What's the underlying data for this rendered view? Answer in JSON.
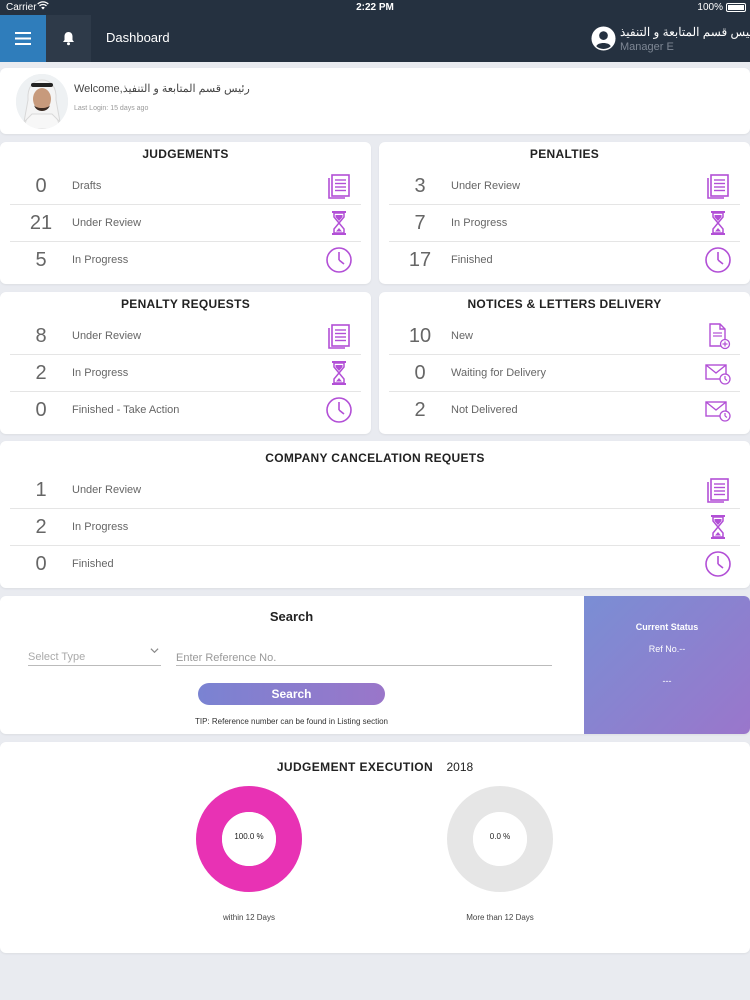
{
  "status_bar": {
    "carrier": "Carrier",
    "time": "2:22 PM",
    "battery": "100%"
  },
  "nav": {
    "title": "Dashboard",
    "user_name": "رئيس قسم المتابعة و التنفيذ",
    "user_role": "Manager E"
  },
  "welcome": {
    "greeting": "Welcome,رئيس قسم المتابعة و التنفيذ",
    "last_login": "Last Login: 15 days ago"
  },
  "judgements": {
    "title": "JUDGEMENTS",
    "rows": [
      {
        "count": "0",
        "label": "Drafts",
        "icon": "document-icon"
      },
      {
        "count": "21",
        "label": "Under Review",
        "icon": "hourglass-icon"
      },
      {
        "count": "5",
        "label": "In Progress",
        "icon": "clock-icon"
      }
    ]
  },
  "penalties": {
    "title": "PENALTIES",
    "rows": [
      {
        "count": "3",
        "label": "Under Review",
        "icon": "document-icon"
      },
      {
        "count": "7",
        "label": "In Progress",
        "icon": "hourglass-icon"
      },
      {
        "count": "17",
        "label": "Finished",
        "icon": "clock-icon"
      }
    ]
  },
  "penalty_requests": {
    "title": "PENALTY REQUESTS",
    "rows": [
      {
        "count": "8",
        "label": "Under Review",
        "icon": "document-icon"
      },
      {
        "count": "2",
        "label": "In Progress",
        "icon": "hourglass-icon"
      },
      {
        "count": "0",
        "label": "Finished - Take Action",
        "icon": "clock-icon"
      }
    ]
  },
  "notices": {
    "title": "NOTICES & LETTERS DELIVERY",
    "rows": [
      {
        "count": "10",
        "label": "New",
        "icon": "new-document-icon"
      },
      {
        "count": "0",
        "label": "Waiting for Delivery",
        "icon": "mail-clock-icon"
      },
      {
        "count": "2",
        "label": "Not Delivered",
        "icon": "mail-clock-icon"
      }
    ]
  },
  "company_cancelation": {
    "title": "COMPANY CANCELATION REQUETS",
    "rows": [
      {
        "count": "1",
        "label": "Under Review",
        "icon": "document-icon"
      },
      {
        "count": "2",
        "label": "In Progress",
        "icon": "hourglass-icon"
      },
      {
        "count": "0",
        "label": "Finished",
        "icon": "clock-icon"
      }
    ]
  },
  "search": {
    "title": "Search",
    "select_placeholder": "Select Type",
    "ref_placeholder": "Enter Reference No.",
    "button_label": "Search",
    "tip": "TIP: Reference number can be found in Listing section"
  },
  "current_status": {
    "title": "Current Status",
    "ref": "Ref No.--",
    "value": "---"
  },
  "execution": {
    "title": "JUDGEMENT EXECUTION",
    "year": "2018",
    "donuts": [
      {
        "percent_label": "100.0 %",
        "value": 100,
        "caption": "within 12 Days",
        "color": "#e832b4"
      },
      {
        "percent_label": "0.0 %",
        "value": 0,
        "caption": "More than 12 Days",
        "color": "#e6e6e6"
      }
    ]
  },
  "colors": {
    "accent": "#b24fd6",
    "navbar": "#253140",
    "menu": "#2f7dbb"
  }
}
